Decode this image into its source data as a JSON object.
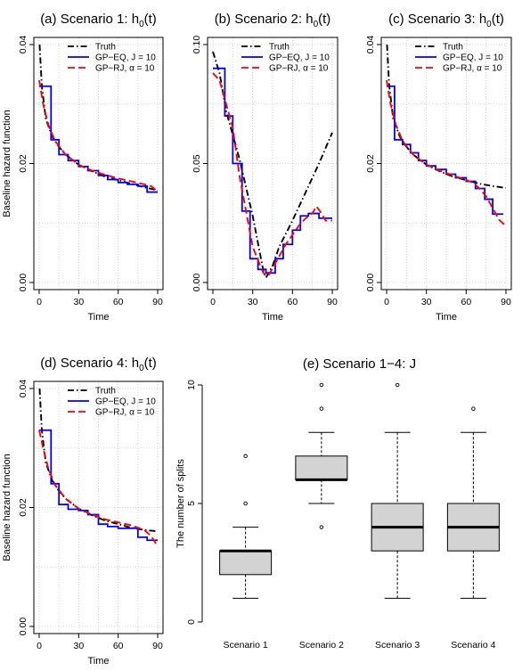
{
  "chart_data": [
    {
      "type": "line",
      "title": "(a) Scenario 1: ",
      "title_math": "h",
      "title_sub": "0",
      "title_tail": "(t)",
      "xlabel": "Time",
      "ylabel": "Baseline hazard function",
      "xlim": [
        0,
        90
      ],
      "ylim": [
        0,
        0.04
      ],
      "xticks": [
        "0",
        "30",
        "60",
        "90"
      ],
      "yticks": [
        "0.00",
        "0.02",
        "0.04"
      ],
      "grid": true,
      "legend_position": "top-right",
      "series": [
        {
          "name": "Truth",
          "color": "#000000",
          "style": "dotdash",
          "x": [
            0.3,
            2,
            5,
            10,
            15,
            20,
            30,
            40,
            50,
            60,
            70,
            80,
            90
          ],
          "y": [
            0.04,
            0.033,
            0.0275,
            0.0245,
            0.0228,
            0.0215,
            0.0198,
            0.0187,
            0.0178,
            0.0172,
            0.0166,
            0.016,
            0.0155
          ]
        },
        {
          "name": "GP−EQ, J = 10",
          "color": "#0000ff",
          "style": "step",
          "x": [
            0,
            9,
            15,
            22,
            30,
            37,
            45,
            52,
            60,
            67,
            75,
            82,
            90
          ],
          "y": [
            0.033,
            0.024,
            0.0215,
            0.0205,
            0.0195,
            0.0188,
            0.018,
            0.0173,
            0.0168,
            0.0165,
            0.0162,
            0.0152,
            0.0152
          ]
        },
        {
          "name": "GP−RJ, α = 10",
          "color": "#ff0000",
          "style": "dashed",
          "x": [
            0,
            3,
            7,
            12,
            20,
            30,
            40,
            50,
            60,
            70,
            80,
            85,
            90
          ],
          "y": [
            0.034,
            0.03,
            0.0265,
            0.0238,
            0.0215,
            0.0198,
            0.0188,
            0.0181,
            0.0175,
            0.017,
            0.0165,
            0.0162,
            0.0153
          ]
        }
      ]
    },
    {
      "type": "line",
      "title": "(b) Scenario 2: ",
      "title_math": "h",
      "title_sub": "0",
      "title_tail": "(t)",
      "xlabel": "Time",
      "ylabel": "",
      "xlim": [
        0,
        90
      ],
      "ylim": [
        0,
        0.1
      ],
      "xticks": [
        "0",
        "30",
        "60",
        "90"
      ],
      "yticks": [
        "0.00",
        "0.05",
        "0.10"
      ],
      "grid": true,
      "legend_position": "top-right",
      "series": [
        {
          "name": "Truth",
          "color": "#000000",
          "style": "dotdash",
          "x": [
            0,
            5,
            10,
            20,
            30,
            38,
            40,
            45,
            50,
            60,
            70,
            80,
            90
          ],
          "y": [
            0.097,
            0.088,
            0.072,
            0.052,
            0.028,
            0.005,
            0.002,
            0.007,
            0.015,
            0.026,
            0.038,
            0.05,
            0.063
          ]
        },
        {
          "name": "GP−EQ, J = 10",
          "color": "#0000ff",
          "style": "step",
          "x": [
            0,
            9,
            15,
            22,
            28,
            34,
            40,
            47,
            53,
            60,
            66,
            72,
            80,
            85,
            90
          ],
          "y": [
            0.09,
            0.07,
            0.05,
            0.03,
            0.01,
            0.0055,
            0.004,
            0.01,
            0.016,
            0.022,
            0.028,
            0.029,
            0.027,
            0.027,
            0.027
          ]
        },
        {
          "name": "GP−RJ, α = 10",
          "color": "#ff0000",
          "style": "dashed",
          "x": [
            0,
            5,
            10,
            15,
            20,
            25,
            30,
            35,
            38,
            42,
            45,
            50,
            55,
            60,
            65,
            70,
            75,
            78,
            82,
            85,
            90
          ],
          "y": [
            0.088,
            0.085,
            0.075,
            0.065,
            0.045,
            0.03,
            0.015,
            0.008,
            0.004,
            0.003,
            0.006,
            0.011,
            0.016,
            0.02,
            0.024,
            0.027,
            0.029,
            0.032,
            0.029,
            0.026,
            0.026
          ]
        }
      ]
    },
    {
      "type": "line",
      "title": "(c) Scenario 3: ",
      "title_math": "h",
      "title_sub": "0",
      "title_tail": "(t)",
      "xlabel": "Time",
      "ylabel": "",
      "xlim": [
        0,
        90
      ],
      "ylim": [
        0,
        0.04
      ],
      "xticks": [
        "0",
        "30",
        "60",
        "90"
      ],
      "yticks": [
        "0.00",
        "0.02",
        "0.04"
      ],
      "grid": true,
      "legend_position": "top-right",
      "series": [
        {
          "name": "Truth",
          "color": "#000000",
          "style": "dotdash",
          "x": [
            0.3,
            2,
            5,
            10,
            15,
            20,
            30,
            40,
            50,
            60,
            70,
            80,
            90
          ],
          "y": [
            0.04,
            0.033,
            0.0275,
            0.0245,
            0.0228,
            0.0215,
            0.0198,
            0.0187,
            0.0178,
            0.0172,
            0.0166,
            0.0162,
            0.0159
          ]
        },
        {
          "name": "GP−EQ, J = 10",
          "color": "#0000ff",
          "style": "step",
          "x": [
            0,
            6,
            12,
            18,
            24,
            30,
            37,
            45,
            52,
            60,
            67,
            74,
            80,
            88
          ],
          "y": [
            0.033,
            0.024,
            0.0232,
            0.0218,
            0.0205,
            0.0196,
            0.019,
            0.0182,
            0.0176,
            0.017,
            0.0158,
            0.014,
            0.0115,
            0.0115
          ]
        },
        {
          "name": "GP−RJ, α = 10",
          "color": "#ff0000",
          "style": "dashed",
          "x": [
            0,
            3,
            7,
            12,
            20,
            30,
            40,
            50,
            60,
            65,
            70,
            75,
            80,
            85,
            90
          ],
          "y": [
            0.034,
            0.03,
            0.0265,
            0.0238,
            0.0215,
            0.0198,
            0.0188,
            0.018,
            0.0172,
            0.0168,
            0.0158,
            0.0145,
            0.0125,
            0.0105,
            0.0095
          ]
        }
      ]
    },
    {
      "type": "line",
      "title": "(d) Scenario 4: ",
      "title_math": "h",
      "title_sub": "0",
      "title_tail": "(t)",
      "xlabel": "Time",
      "ylabel": "Baseline hazard function",
      "xlim": [
        0,
        90
      ],
      "ylim": [
        0,
        0.04
      ],
      "xticks": [
        "0",
        "30",
        "60",
        "90"
      ],
      "yticks": [
        "0.00",
        "0.02",
        "0.04"
      ],
      "grid": true,
      "legend_position": "top-right",
      "series": [
        {
          "name": "Truth",
          "color": "#000000",
          "style": "dotdash",
          "x": [
            0.3,
            2,
            5,
            10,
            15,
            20,
            30,
            40,
            50,
            60,
            70,
            80,
            90
          ],
          "y": [
            0.04,
            0.033,
            0.0275,
            0.0245,
            0.0228,
            0.0215,
            0.0198,
            0.0187,
            0.0178,
            0.0172,
            0.0166,
            0.0162,
            0.016
          ]
        },
        {
          "name": "GP−EQ, J = 10",
          "color": "#0000ff",
          "style": "step",
          "x": [
            0,
            9,
            15,
            22,
            30,
            37,
            45,
            52,
            60,
            67,
            75,
            82,
            90
          ],
          "y": [
            0.033,
            0.024,
            0.0205,
            0.0197,
            0.0195,
            0.0188,
            0.0172,
            0.0168,
            0.0165,
            0.0165,
            0.015,
            0.0145,
            0.0145
          ]
        },
        {
          "name": "GP−RJ, α = 10",
          "color": "#ff0000",
          "style": "dashed",
          "x": [
            0,
            3,
            7,
            12,
            20,
            30,
            40,
            50,
            60,
            70,
            80,
            85,
            90
          ],
          "y": [
            0.033,
            0.03,
            0.0265,
            0.0238,
            0.0215,
            0.0198,
            0.0188,
            0.018,
            0.0175,
            0.017,
            0.0162,
            0.0152,
            0.0135
          ]
        }
      ]
    },
    {
      "type": "box",
      "title": "(e) Scenario 1−4: J",
      "xlabel": "",
      "ylabel": "The number of splits",
      "ylim": [
        0,
        10
      ],
      "yticks": [
        "0",
        "5",
        "10"
      ],
      "categories": [
        "Scenario 1",
        "Scenario 2",
        "Scenario 3",
        "Scenario 4"
      ],
      "boxes": [
        {
          "min": 1,
          "q1": 2,
          "median": 3,
          "q3": 3,
          "max": 4,
          "outliers": [
            5,
            7
          ]
        },
        {
          "min": 5,
          "q1": 6,
          "median": 6,
          "q3": 7,
          "max": 8,
          "outliers": [
            4,
            9,
            10
          ]
        },
        {
          "min": 1,
          "q1": 3,
          "median": 4,
          "q3": 5,
          "max": 8,
          "outliers": [
            10
          ]
        },
        {
          "min": 1,
          "q1": 3,
          "median": 4,
          "q3": 5,
          "max": 8,
          "outliers": [
            9
          ]
        }
      ],
      "box_fill": "#d3d3d3"
    }
  ]
}
